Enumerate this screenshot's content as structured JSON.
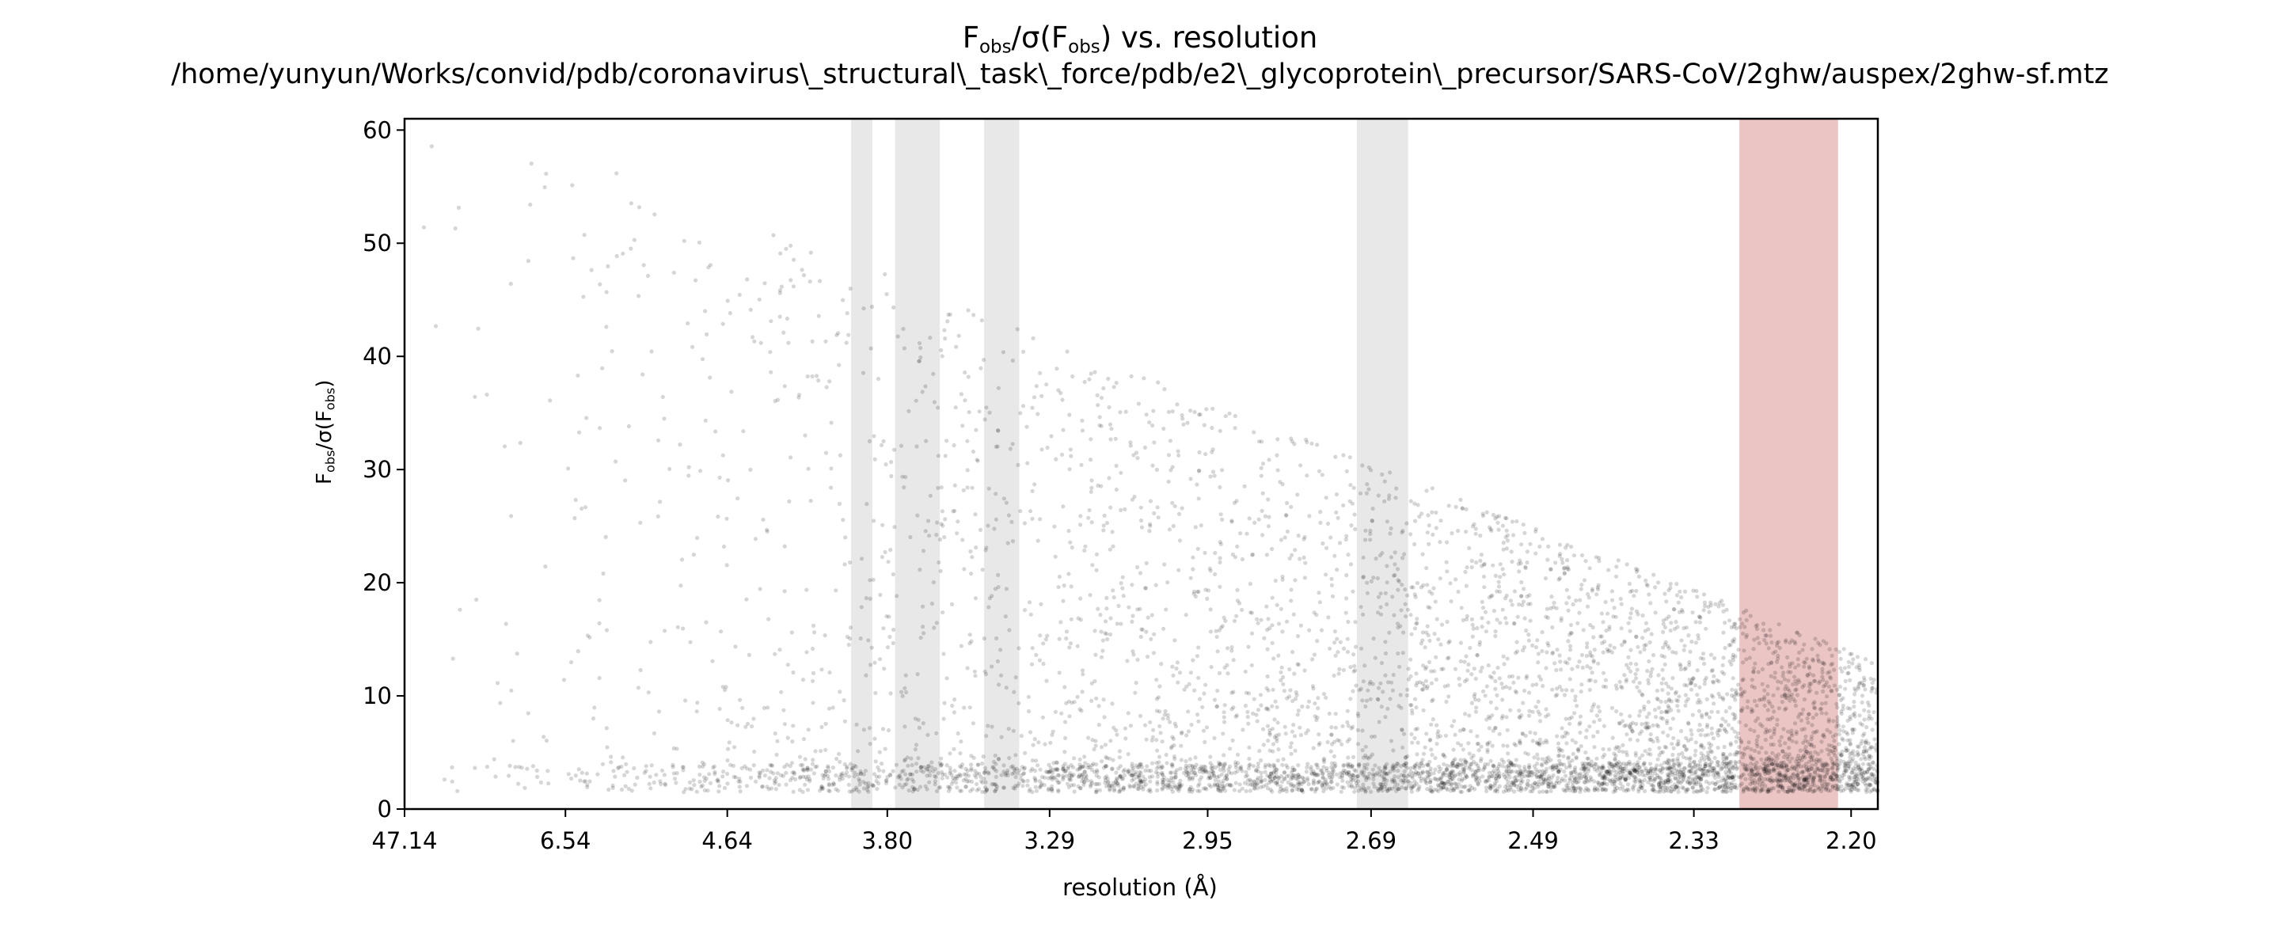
{
  "chart_data": {
    "type": "scatter",
    "title": {
      "main": {
        "before": "F",
        "sub1": "obs",
        "mid": "/σ(F",
        "sub2": "obs",
        "after": ") vs. resolution"
      },
      "path": "/home/yunyun/Works/convid/pdb/coronavirus\\_structural\\_task\\_force/pdb/e2\\_glycoprotein\\_precursor/SARS-CoV/2ghw/auspex/2ghw-sf.mtz"
    },
    "xlabel": "resolution (Å)",
    "ylabel": {
      "before": "F",
      "sub1": "obs",
      "mid": "/σ(F",
      "sub2": "obs",
      "after": ")"
    },
    "x_scale": "1/d^2",
    "x_tick_labels": [
      "47.14",
      "6.54",
      "4.64",
      "3.80",
      "3.29",
      "2.95",
      "2.69",
      "2.49",
      "2.33",
      "2.20"
    ],
    "xlim_resolution": [
      47.14,
      2.18
    ],
    "ylim": [
      0,
      61
    ],
    "y_ticks": [
      0,
      10,
      20,
      30,
      40,
      50,
      60
    ],
    "series": [
      {
        "color": "#000000",
        "description_points_total": 6000
      }
    ],
    "ice_ring_bands_resolution": [
      [
        3.95,
        3.86
      ],
      [
        3.77,
        3.61
      ],
      [
        3.47,
        3.37
      ],
      [
        2.71,
        2.64
      ]
    ],
    "highlight_band_resolution": [
      2.29,
      2.21
    ],
    "band_colors": {
      "ice": "#cccccc",
      "highlight": "#d88a8a"
    },
    "grid": false
  }
}
